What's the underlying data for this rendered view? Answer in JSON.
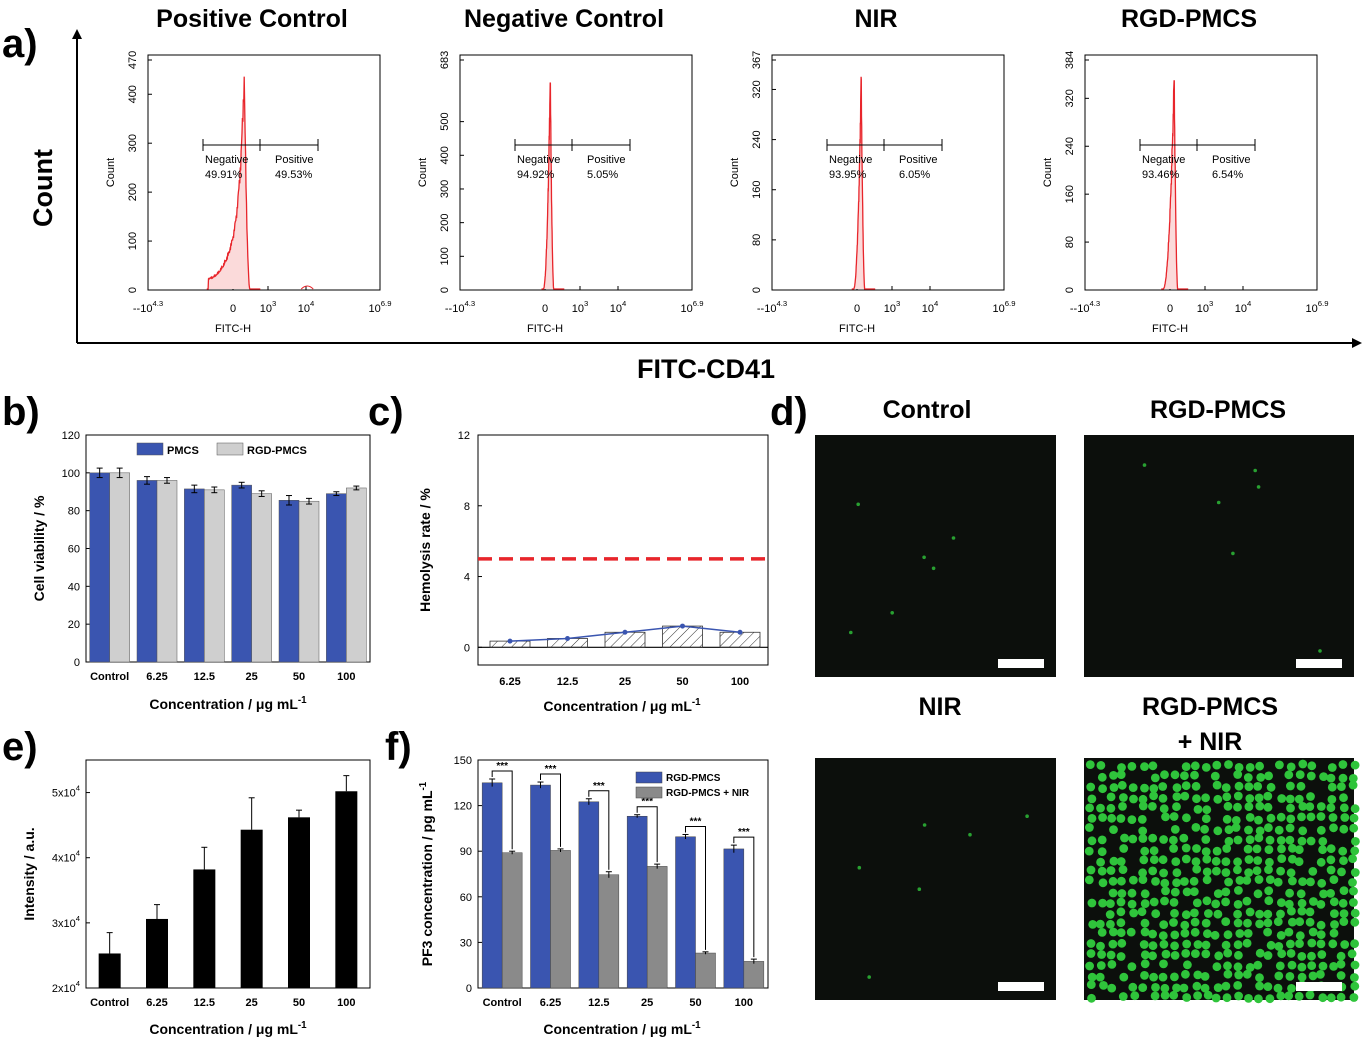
{
  "panel_labels": {
    "a": "a)",
    "b": "b)",
    "c": "c)",
    "d": "d)",
    "e": "e)",
    "f": "f)"
  },
  "panel_a": {
    "y_label": "Count",
    "x_label": "FITC-CD41",
    "x_tick_labels": {
      "min": "-10",
      "min_exp": "4.3",
      "zero": "0",
      "t3": "10",
      "t3_exp": "3",
      "t4": "10",
      "t4_exp": "4",
      "max": "10",
      "max_exp": "6.9"
    },
    "inner_x_label": "FITC-H",
    "inner_y_label": "Count",
    "gate_labels": {
      "neg": "Negative",
      "pos": "Positive"
    }
  },
  "chart_data": [
    {
      "type": "area",
      "panel": "a",
      "title": "Positive Control",
      "yticks": [
        "0",
        "100",
        "200",
        "300",
        "400",
        "470"
      ],
      "ymax": 470,
      "percent_negative": "49.91%",
      "percent_positive": "49.53%",
      "color": "#e8252b"
    },
    {
      "type": "area",
      "panel": "a",
      "title": "Negative Control",
      "yticks": [
        "0",
        "100",
        "200",
        "300",
        "400",
        "500",
        "683"
      ],
      "ymax": 683,
      "percent_negative": "94.92%",
      "percent_positive": "5.05%",
      "color": "#e8252b"
    },
    {
      "type": "area",
      "panel": "a",
      "title": "NIR",
      "yticks": [
        "0",
        "80",
        "160",
        "240",
        "320",
        "367"
      ],
      "ymax": 367,
      "percent_negative": "93.95%",
      "percent_positive": "6.05%",
      "color": "#e8252b"
    },
    {
      "type": "area",
      "panel": "a",
      "title": "RGD-PMCS",
      "yticks": [
        "0",
        "80",
        "160",
        "240",
        "320",
        "384"
      ],
      "ymax": 384,
      "percent_negative": "93.46%",
      "percent_positive": "6.54%",
      "color": "#e8252b"
    },
    {
      "type": "bar",
      "panel": "b",
      "categories": [
        "Control",
        "6.25",
        "12.5",
        "25",
        "50",
        "100"
      ],
      "series": [
        {
          "name": "PMCS",
          "values": [
            100,
            96,
            91.5,
            93.5,
            85.5,
            89
          ],
          "errors": [
            2.5,
            2,
            2,
            1.5,
            2.5,
            1
          ],
          "color": "#3a55b0"
        },
        {
          "name": "RGD-PMCS",
          "values": [
            100,
            96,
            91,
            89,
            85,
            92
          ],
          "errors": [
            2.5,
            1.5,
            1.5,
            1.5,
            1.5,
            1
          ],
          "color": "#cfcfcf"
        }
      ],
      "xlabel": "Concentration / μg mL",
      "xlabel_sup": "-1",
      "ylabel": "Cell viability / %",
      "ylim": [
        0,
        120
      ],
      "yticks": [
        "0",
        "20",
        "40",
        "60",
        "80",
        "100",
        "120"
      ],
      "legend": "top-center"
    },
    {
      "type": "line",
      "panel": "c",
      "categories": [
        "6.25",
        "12.5",
        "25",
        "50",
        "100"
      ],
      "values": [
        0.35,
        0.5,
        0.85,
        1.2,
        0.85
      ],
      "threshold": 5,
      "threshold_color": "#e8252b",
      "line_color": "#3a55b0",
      "xlabel": "Concentration / μg mL",
      "xlabel_sup": "-1",
      "ylabel": "Hemolysis rate / %",
      "ylim": [
        -1,
        12
      ],
      "yticks": [
        "0",
        "4",
        "8",
        "12"
      ]
    },
    {
      "type": "bar",
      "panel": "e",
      "categories": [
        "Control",
        "6.25",
        "12.5",
        "25",
        "50",
        "100"
      ],
      "values": [
        25300,
        30600,
        38200,
        44300,
        46200,
        50200
      ],
      "errors": [
        3200,
        2200,
        3400,
        4900,
        1100,
        2400
      ],
      "color": "#000000",
      "xlabel": "Concentration / μg mL",
      "xlabel_sup": "-1",
      "ylabel": "Intensity / a.u.",
      "ylim": [
        20000,
        55000
      ],
      "yticks": [
        "2x10",
        "3x10",
        "4x10",
        "5x10"
      ],
      "ytick_exp": "4"
    },
    {
      "type": "bar",
      "panel": "f",
      "categories": [
        "Control",
        "6.25",
        "12.5",
        "25",
        "50",
        "100"
      ],
      "series": [
        {
          "name": "RGD-PMCS",
          "values": [
            135,
            133.5,
            122.5,
            113,
            99.5,
            91.5
          ],
          "errors": [
            2.5,
            2,
            2,
            1,
            1.5,
            2.5
          ],
          "color": "#3a55b0"
        },
        {
          "name": "RGD-PMCS + NIR",
          "values": [
            89,
            90.5,
            74.5,
            80,
            23,
            17.5
          ],
          "errors": [
            1,
            1,
            2,
            1.5,
            0.8,
            1.5
          ],
          "color": "#8a8a8a"
        }
      ],
      "significance": "***",
      "xlabel": "Concentration / μg mL",
      "xlabel_sup": "-1",
      "ylabel": "PF3 concentration / pg mL",
      "ylabel_sup": "-1",
      "ylim": [
        0,
        150
      ],
      "yticks": [
        "0",
        "30",
        "60",
        "90",
        "120",
        "150"
      ],
      "legend": "top-right"
    }
  ],
  "panel_d": {
    "images": [
      {
        "title": "Control",
        "dots": "few"
      },
      {
        "title": "RGD-PMCS",
        "dots": "few"
      },
      {
        "title": "NIR",
        "dots": "few"
      },
      {
        "title": "RGD-PMCS",
        "title2": "+ NIR",
        "dots": "dense"
      }
    ],
    "image_bg": "#0c0f0c",
    "dot_color": "#2fc43b"
  }
}
